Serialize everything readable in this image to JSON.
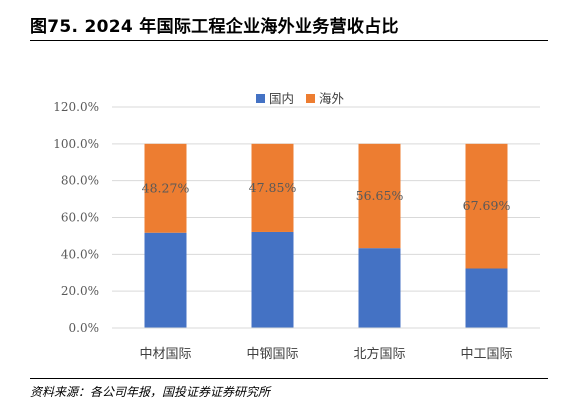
{
  "header": {
    "title": "图75. 2024 年国际工程企业海外业务营收占比"
  },
  "footer": {
    "source": "资料来源：各公司年报，国投证券证券研究所"
  },
  "colors": {
    "domestic": "#4472C4",
    "overseas": "#ED7D31",
    "grid": "#D9D9D9"
  },
  "chart_data": {
    "type": "bar",
    "stacked": true,
    "categories": [
      "中材国际",
      "中钢国际",
      "北方国际",
      "中工国际"
    ],
    "series": [
      {
        "name": "国内",
        "values": [
          51.73,
          52.15,
          43.35,
          32.31
        ]
      },
      {
        "name": "海外",
        "values": [
          48.27,
          47.85,
          56.65,
          67.69
        ]
      }
    ],
    "data_labels": [
      "48.27%",
      "47.85%",
      "56.65%",
      "67.69%"
    ],
    "yticks": [
      "0.0%",
      "20.0%",
      "40.0%",
      "60.0%",
      "80.0%",
      "100.0%",
      "120.0%"
    ],
    "ylim": [
      0,
      120
    ],
    "legend_position": "top",
    "grid": true
  }
}
